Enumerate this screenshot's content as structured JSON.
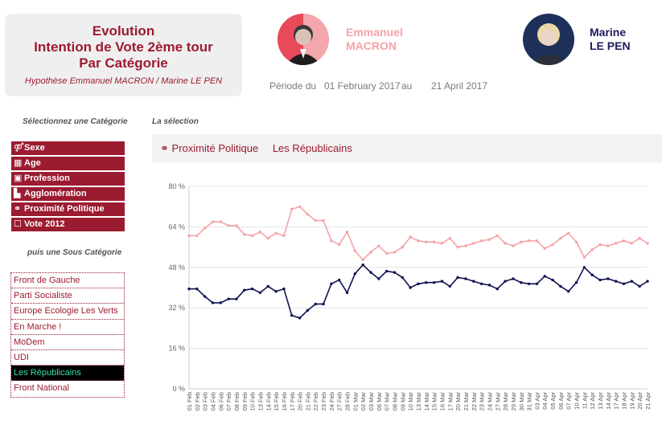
{
  "header": {
    "title_lines": [
      "Evolution",
      "Intention de Vote 2ème tour",
      "Par Catégorie"
    ],
    "subtitle": "Hypothèse Emmanuel MACRON / Marine LE PEN"
  },
  "candidates": [
    {
      "first": "Emmanuel",
      "last": "MACRON",
      "color": "#f4a3a8"
    },
    {
      "first": "Marine",
      "last": "LE PEN",
      "color": "#1c1c5e"
    }
  ],
  "period": {
    "label": "Période du",
    "from": "01 February 2017",
    "sep": "au",
    "to": "21 April 2017"
  },
  "categories": {
    "heading": "Sélectionnez une Catégorie",
    "items": [
      {
        "label": "Sexe",
        "icon": "gender-icon"
      },
      {
        "label": "Age",
        "icon": "calendar-icon"
      },
      {
        "label": "Profession",
        "icon": "briefcase-icon"
      },
      {
        "label": "Agglomération",
        "icon": "city-icon"
      },
      {
        "label": "Proximité Politique",
        "icon": "handshake-icon"
      },
      {
        "label": "Vote 2012",
        "icon": "ballot-icon"
      }
    ]
  },
  "subcategories": {
    "heading": "puis une Sous Catégorie",
    "items": [
      "Front de Gauche",
      "Parti Socialiste",
      "Europe Ecologie Les Verts",
      "En Marche !",
      "MoDem",
      "UDI",
      "Les Républicains",
      "Front National"
    ],
    "active": "Les Républicains"
  },
  "selection": {
    "heading": "La sélection",
    "category": "Proximité Politique",
    "subcategory": "Les Républicains"
  },
  "chart_data": {
    "type": "line",
    "ylim": [
      0,
      80
    ],
    "yticks": [
      "0 %",
      "16 %",
      "32 %",
      "48 %",
      "64 %",
      "80 %"
    ],
    "x": [
      "01 Feb",
      "02 Feb",
      "03 Feb",
      "04 Feb",
      "06 Feb",
      "07 Feb",
      "08 Feb",
      "09 Feb",
      "10 Feb",
      "13 Feb",
      "14 Feb",
      "15 Feb",
      "16 Feb",
      "17 Feb",
      "20 Feb",
      "21 Feb",
      "22 Feb",
      "23 Feb",
      "24 Feb",
      "27 Feb",
      "28 Feb",
      "01 Mar",
      "02 Mar",
      "03 Mar",
      "06 Mar",
      "07 Mar",
      "08 Mar",
      "09 Mar",
      "10 Mar",
      "13 Mar",
      "14 Mar",
      "15 Mar",
      "16 Mar",
      "17 Mar",
      "20 Mar",
      "21 Mar",
      "22 Mar",
      "23 Mar",
      "24 Mar",
      "27 Mar",
      "28 Mar",
      "29 Mar",
      "30 Mar",
      "31 Mar",
      "03 Apr",
      "04 Apr",
      "05 Apr",
      "06 Apr",
      "07 Apr",
      "10 Apr",
      "11 Apr",
      "12 Apr",
      "13 Apr",
      "14 Apr",
      "17 Apr",
      "18 Apr",
      "19 Apr",
      "20 Apr",
      "21 Apr"
    ],
    "series": [
      {
        "name": "MACRON",
        "color": "#f4a3a8",
        "values": [
          60.5,
          60.5,
          63.5,
          66,
          66,
          64.5,
          64.5,
          61,
          60.5,
          62,
          59.5,
          61.5,
          60.5,
          71,
          72,
          69,
          66.5,
          66.5,
          58.5,
          57,
          62,
          54.5,
          51,
          54,
          56.5,
          53.5,
          54,
          56,
          60,
          58.5,
          58,
          58,
          57.5,
          59.5,
          56,
          56.5,
          57.5,
          58.5,
          59,
          60.5,
          57.5,
          56.5,
          58,
          58.5,
          58.5,
          55.5,
          57,
          59.5,
          61.5,
          58,
          52,
          55,
          57,
          56.5,
          57.5,
          58.5,
          57.5,
          59.5,
          57.5
        ]
      },
      {
        "name": "LE PEN",
        "color": "#0f1250",
        "values": [
          39.5,
          39.5,
          36.5,
          34,
          34,
          35.5,
          35.5,
          39,
          39.5,
          38,
          40.5,
          38.5,
          39.5,
          29,
          28,
          31,
          33.5,
          33.5,
          41.5,
          43,
          38,
          45.5,
          49,
          46,
          43.5,
          46.5,
          46,
          44,
          40,
          41.5,
          42,
          42,
          42.5,
          40.5,
          44,
          43.5,
          42.5,
          41.5,
          41,
          39.5,
          42.5,
          43.5,
          42,
          41.5,
          41.5,
          44.5,
          43,
          40.5,
          38.5,
          42,
          48,
          45,
          43,
          43.5,
          42.5,
          41.5,
          42.5,
          40.5,
          42.5
        ]
      }
    ]
  }
}
